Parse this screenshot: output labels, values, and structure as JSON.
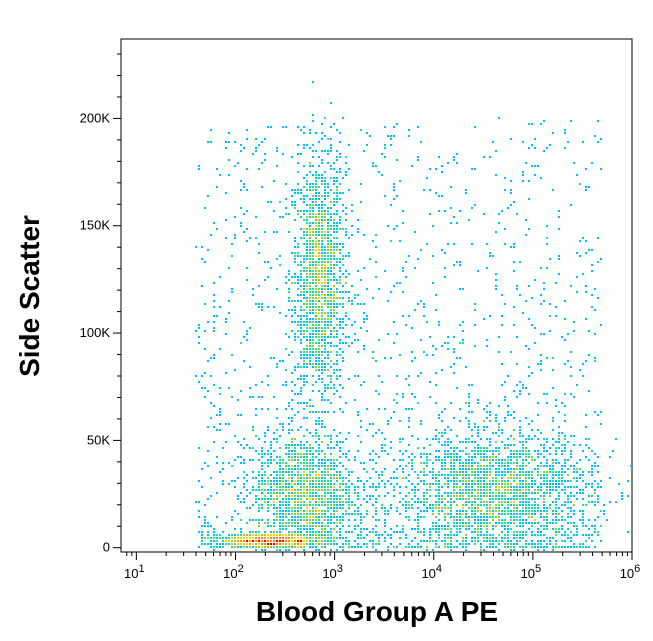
{
  "chart_data": {
    "type": "scatter",
    "subtype": "flow-cytometry-density-dot-plot",
    "title": "",
    "xlabel": "Blood Group A PE",
    "ylabel": "Side Scatter",
    "x_scale": "log",
    "y_scale": "linear",
    "xlim": [
      7,
      1000000
    ],
    "ylim": [
      -2000,
      237000
    ],
    "x_ticks": [
      {
        "value": 10,
        "base": "10",
        "exp": "1"
      },
      {
        "value": 100,
        "base": "10",
        "exp": "2"
      },
      {
        "value": 1000,
        "base": "10",
        "exp": "3"
      },
      {
        "value": 10000,
        "base": "10",
        "exp": "4"
      },
      {
        "value": 100000,
        "base": "10",
        "exp": "5"
      },
      {
        "value": 1000000,
        "base": "10",
        "exp": "6"
      }
    ],
    "y_ticks": [
      {
        "value": 0,
        "label": "0"
      },
      {
        "value": 50000,
        "label": "50K"
      },
      {
        "value": 100000,
        "label": "100K"
      },
      {
        "value": 150000,
        "label": "150K"
      },
      {
        "value": 200000,
        "label": "200K"
      }
    ],
    "color_scale": [
      "#1a1aff",
      "#00bfff",
      "#20e0a0",
      "#9acd32",
      "#ffd700",
      "#ff8c00",
      "#e00000"
    ],
    "populations": [
      {
        "x_center": 700,
        "y_center": 125000,
        "x_spread_decades": 0.13,
        "y_spread": 28000,
        "density": "medium-high"
      },
      {
        "x_center": 500,
        "y_center": 25000,
        "x_spread_decades": 0.25,
        "y_spread": 14000,
        "density": "high"
      },
      {
        "x_center": 230,
        "y_center": 3000,
        "x_spread_decades": 0.25,
        "y_spread": 1500,
        "density": "very-high"
      },
      {
        "x_center": 40000,
        "y_center": 25000,
        "x_spread_decades": 0.5,
        "y_spread": 15000,
        "density": "medium"
      }
    ],
    "grid": false,
    "legend": "none"
  }
}
